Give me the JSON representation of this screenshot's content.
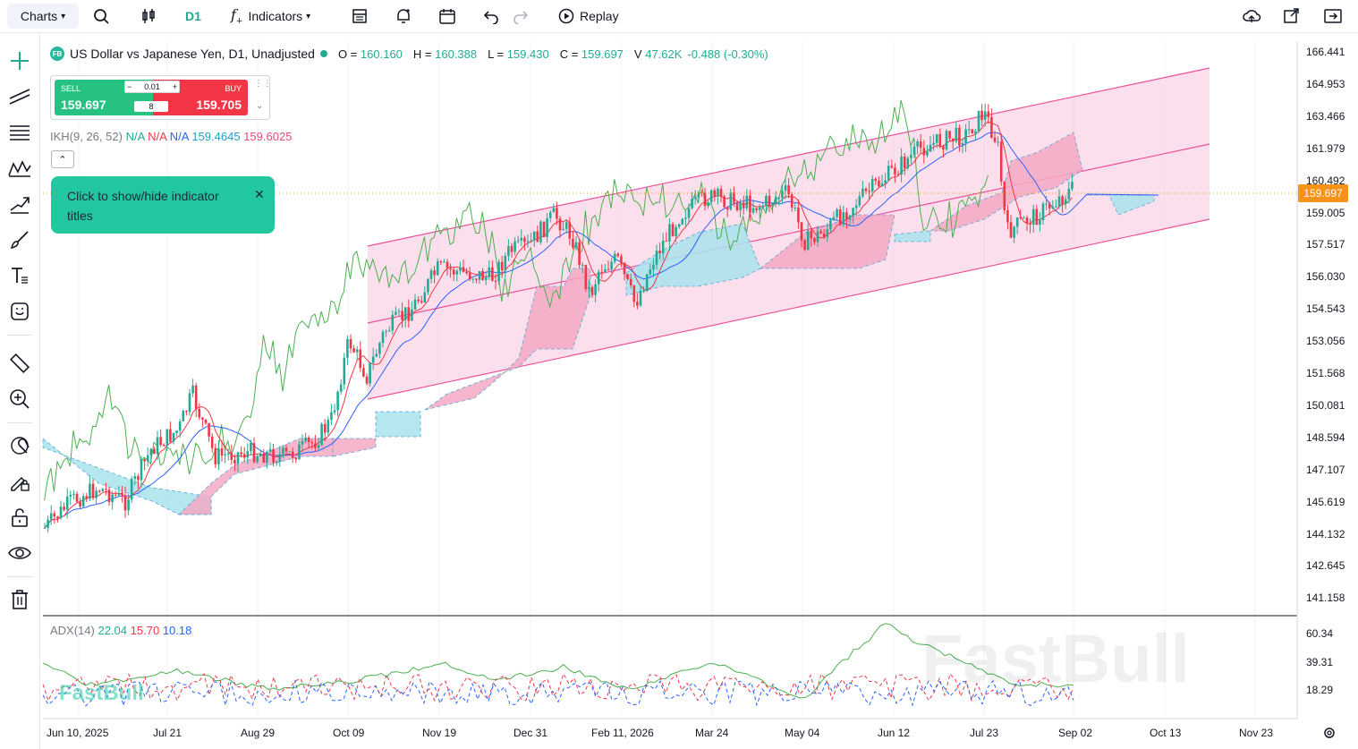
{
  "toolbar": {
    "charts_label": "Charts",
    "interval": "D1",
    "indicators_label": "Indicators",
    "replay_label": "Replay"
  },
  "symbol": {
    "badge": "FB",
    "title": "US Dollar vs Japanese Yen, D1, Unadjusted",
    "open_label": "O =",
    "open": "160.160",
    "high_label": "H =",
    "high": "160.388",
    "low_label": "L =",
    "low": "159.430",
    "close_label": "C =",
    "close": "159.697",
    "volume_label": "V",
    "volume": "47.62K",
    "change": "-0.488 (-0.30%)"
  },
  "trade": {
    "sell_label": "SELL",
    "sell_price": "159.697",
    "buy_label": "BUY",
    "buy_price": "159.705",
    "lot": "0.01",
    "spread": "8"
  },
  "ikh": {
    "label": "IKH(9, 26, 52)",
    "v1": "N/A",
    "v2": "N/A",
    "v3": "N/A",
    "v4": "159.4645",
    "v5": "159.6025"
  },
  "tooltip": {
    "text": "Click to show/hide indicator titles"
  },
  "price_axis": [
    "166.441",
    "164.953",
    "163.466",
    "161.979",
    "160.492",
    "159.005",
    "157.517",
    "156.030",
    "154.543",
    "153.056",
    "151.568",
    "150.081",
    "148.594",
    "147.107",
    "145.619",
    "144.132",
    "142.645",
    "141.158"
  ],
  "current_price": "159.697",
  "adx": {
    "label": "ADX(14)",
    "v1": "22.04",
    "v2": "15.70",
    "v3": "10.18",
    "axis": [
      "60.34",
      "39.31",
      "18.29"
    ]
  },
  "time_axis": [
    "Jun 10, 2025",
    "Jul 21",
    "Aug 29",
    "Oct 09",
    "Nov 19",
    "Dec 31",
    "Feb 11, 2026",
    "Mar 24",
    "May 04",
    "Jun 12",
    "Jul 23",
    "Sep 02",
    "Oct 13",
    "Nov 23"
  ],
  "watermark": "FastBull",
  "colors": {
    "accent": "#22ab94",
    "down": "#f23645",
    "tooltip": "#22c7a0",
    "price_tag": "#f7931a",
    "channel": "#f8c6dc"
  }
}
